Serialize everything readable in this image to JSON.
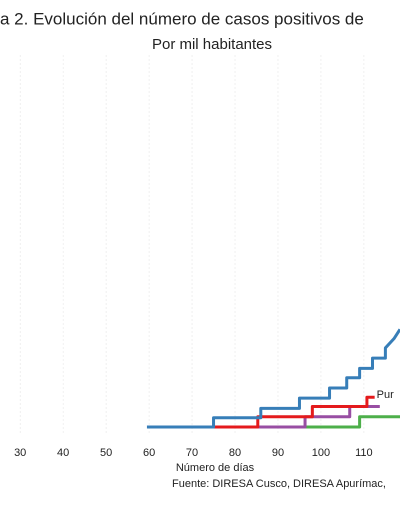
{
  "chart_data": {
    "type": "line",
    "title": "a 2. Evolución del número de casos positivos de",
    "subtitle": "Por mil habitantes",
    "x_label": "Número de días",
    "caption": "Fuente: DIRESA Cusco, DIRESA Apurímac,",
    "annotation": "Pur",
    "xlim": [
      25.3,
      118.4
    ],
    "xticks": [
      30,
      40,
      50,
      60,
      70,
      80,
      90,
      100,
      110
    ],
    "ylim": [
      0,
      4
    ],
    "grid": true,
    "series": [
      {
        "color": "#4daf4a",
        "x": [
          60,
          109,
          109,
          118.4
        ],
        "values": [
          0,
          0,
          0.11,
          0.11
        ]
      },
      {
        "color": "#984ea3",
        "x": [
          63.7,
          96.3,
          96.3,
          106.7,
          106.7,
          113.7
        ],
        "values": [
          0,
          0,
          0.11,
          0.11,
          0.22,
          0.22
        ]
      },
      {
        "color": "#e41a1c",
        "x": [
          65,
          85.3,
          85.3,
          98,
          98,
          110.7,
          110.7,
          112.5
        ],
        "values": [
          0,
          0,
          0.11,
          0.11,
          0.22,
          0.22,
          0.32,
          0.32
        ]
      },
      {
        "color": "#377eb8",
        "x": [
          59.5,
          75,
          75,
          86,
          86,
          95,
          95,
          102,
          102,
          106,
          106,
          109,
          109,
          112,
          112,
          115,
          115,
          117,
          118.4
        ],
        "values": [
          0,
          0,
          0.1,
          0.1,
          0.2,
          0.2,
          0.31,
          0.31,
          0.42,
          0.42,
          0.53,
          0.53,
          0.63,
          0.63,
          0.74,
          0.74,
          0.85,
          0.95,
          1.05
        ]
      }
    ]
  }
}
